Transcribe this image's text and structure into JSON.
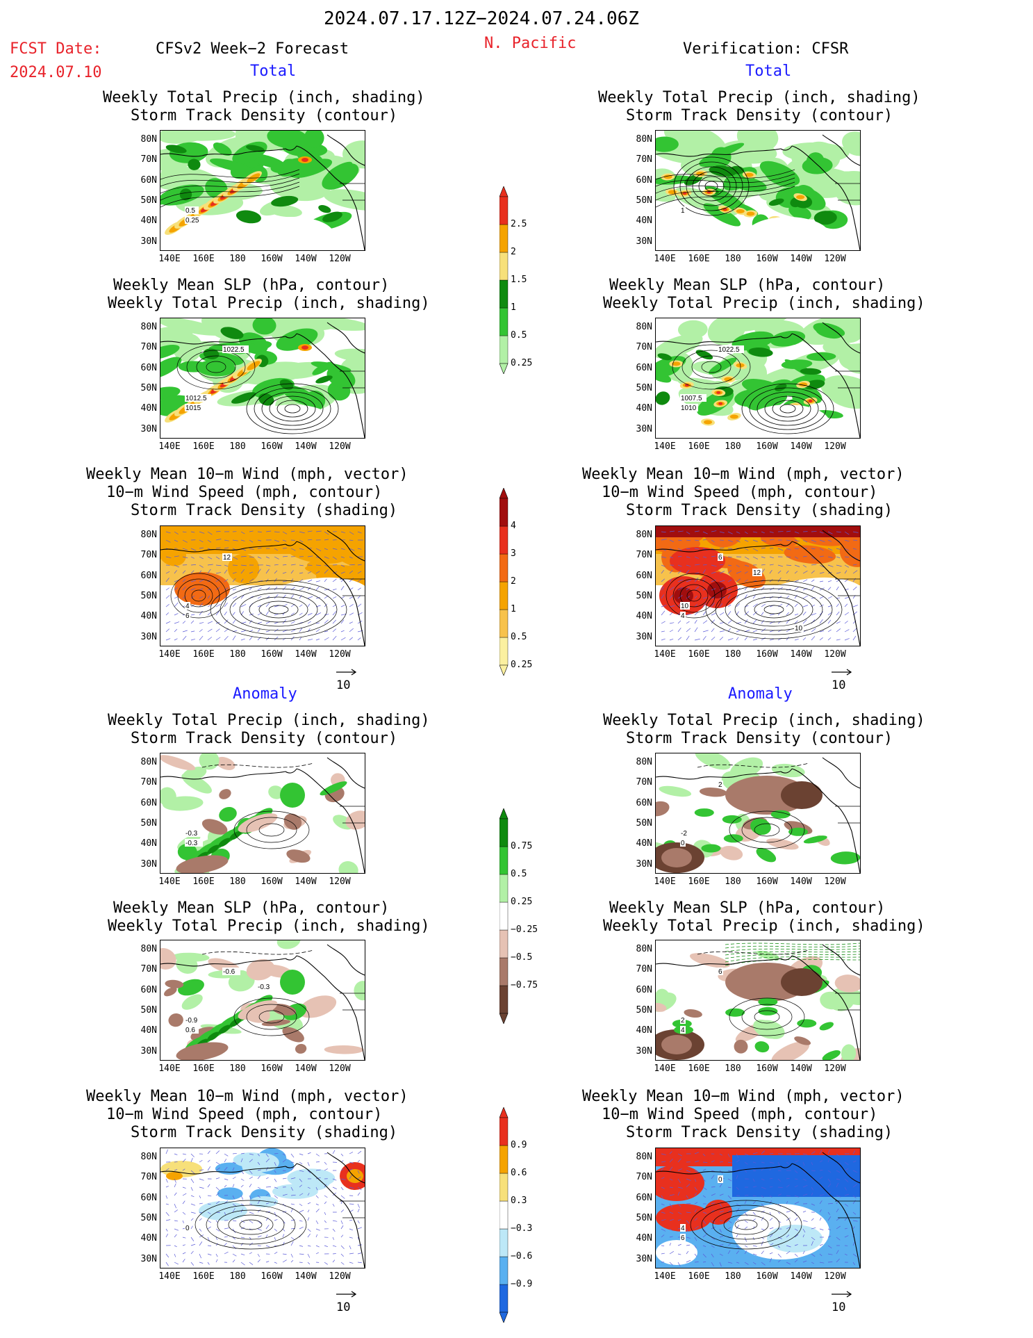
{
  "header": {
    "date_range": "2024.07.17.12Z−2024.07.24.06Z",
    "fcst_label": "FCST Date:",
    "fcst_date": "2024.07.10",
    "model_title": "CFSv2 Week−2 Forecast",
    "region": "N. Pacific",
    "verification": "Verification: CFSR"
  },
  "sections": {
    "total": "Total",
    "anomaly": "Anomaly"
  },
  "titles": {
    "precip_storm": [
      "Weekly Total Precip (inch, shading)",
      "Storm Track Density (contour)"
    ],
    "slp_precip": [
      "Weekly Mean SLP (hPa, contour)",
      "Weekly Total Precip (inch, shading)"
    ],
    "wind_storm": [
      "Weekly Mean 10−m Wind (mph, vector)",
      "10−m Wind Speed (mph, contour)",
      "Storm Track Density (shading)"
    ]
  },
  "axes": {
    "lat_ticks": [
      "80N",
      "70N",
      "60N",
      "50N",
      "40N",
      "30N"
    ],
    "lon_ticks": [
      "140E",
      "160E",
      "180",
      "160W",
      "140W",
      "120W"
    ]
  },
  "vector_ref": "10",
  "colorbars": {
    "precip_total": {
      "labels": [
        "2.5",
        "2",
        "1.5",
        "1",
        "0.5",
        "0.25"
      ],
      "colors": [
        "#e8301e",
        "#f5a300",
        "#f7e07a",
        "#0f8a0f",
        "#33c433",
        "#b2f0a6"
      ]
    },
    "storm_total": {
      "labels": [
        "4",
        "3",
        "2",
        "1",
        "0.5",
        "0.25"
      ],
      "colors": [
        "#a10e0e",
        "#e8301e",
        "#f26a14",
        "#f5a300",
        "#f7c24c",
        "#fbf0a0"
      ]
    },
    "precip_anom": {
      "labels": [
        "0.75",
        "0.5",
        "0.25",
        "−0.25",
        "−0.5",
        "−0.75"
      ],
      "colors": [
        "#0f8a0f",
        "#33c433",
        "#b2f0a6",
        "#ffffff",
        "#e6c2b4",
        "#a97a6a",
        "#6b4232"
      ]
    },
    "storm_anom": {
      "labels": [
        "0.9",
        "0.6",
        "0.3",
        "−0.3",
        "−0.6",
        "−0.9"
      ],
      "colors": [
        "#e8301e",
        "#f5a300",
        "#f7e07a",
        "#ffffff",
        "#bde8f7",
        "#5ab0f0",
        "#1f68e0"
      ]
    }
  },
  "panel_labels": {
    "p1": [
      "0.5",
      "0.25"
    ],
    "p2": [
      "1012.5",
      "1015",
      "1022.5"
    ],
    "p3": [
      "4",
      "6",
      "12"
    ],
    "p4": [
      "1"
    ],
    "p5": [
      "1007.5",
      "1010",
      "1022.5"
    ],
    "p6": [
      "10",
      "4",
      "6",
      "12",
      "10"
    ],
    "p7": [
      "-0.3",
      "-0.3"
    ],
    "p8": [
      "-0.9",
      "0.6",
      "-0.6",
      "-0.3"
    ],
    "p9": [
      "0"
    ],
    "p10": [
      "-2",
      "0",
      "2"
    ],
    "p11": [
      "2",
      "4",
      "6"
    ],
    "p12": [
      "4",
      "6",
      "0"
    ]
  }
}
